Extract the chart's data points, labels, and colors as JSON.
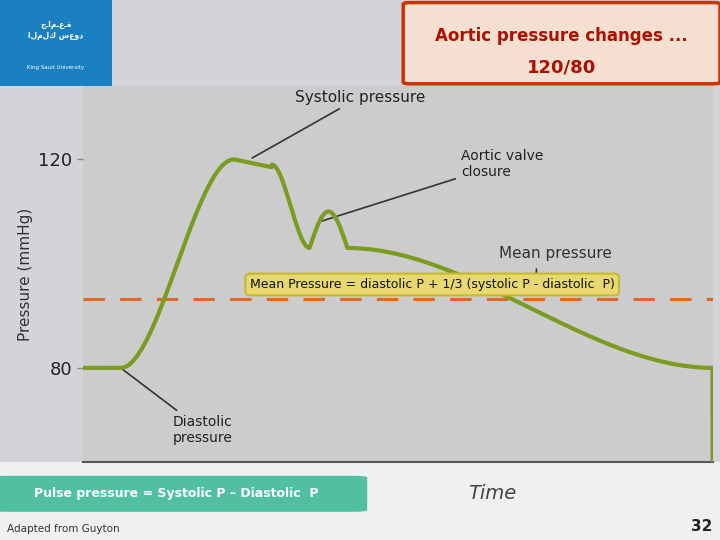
{
  "fig_width": 7.2,
  "fig_height": 5.4,
  "bg_color": "#d4d4d8",
  "plot_bg_color": "#cccccc",
  "white_strip_color": "#f0f0f0",
  "systolic": 120,
  "diastolic": 80,
  "mean_pressure": 93.3,
  "title_box_text": "Aortic pressure changes ...\n120/80",
  "title_box_facecolor": "#f5dfd0",
  "title_box_edgecolor": "#cc3300",
  "title_text_color": "#aa1100",
  "mean_formula": "Mean Pressure = diastolic P + 1/3 (systolic P - diastolic  P)",
  "mean_formula_bg": "#e8d870",
  "mean_formula_edge": "#c8b830",
  "pulse_text": "Pulse pressure = Systolic P – Diastolic  P",
  "pulse_bg_top": "#50c0a0",
  "pulse_bg_bot": "#209070",
  "pulse_text_color": "#ffffff",
  "ylabel": "Pressure (mmHg)",
  "xlabel": "Time",
  "curve_color": "#7a9c20",
  "dashed_color": "#e06820",
  "ytick_labels": [
    "80",
    "120"
  ],
  "ytick_values": [
    80,
    120
  ],
  "adapted_text": "Adapted from Guyton",
  "page_num": "32",
  "logo_bg": "#1a80c0",
  "logo_text_color": "#ffffff"
}
